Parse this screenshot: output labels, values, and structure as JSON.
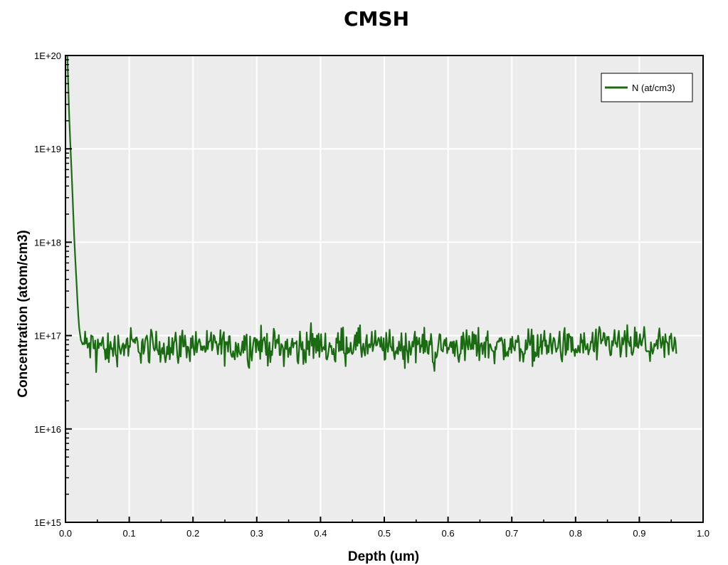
{
  "chart_data": {
    "type": "line",
    "title": "CMSH",
    "xlabel": "Depth (um)",
    "ylabel": "Concentration (atom/cm3)",
    "xlim": [
      0.0,
      1.0
    ],
    "ylim": [
      1000000000000000.0,
      1e+20
    ],
    "y_scale": "log",
    "grid": true,
    "legend_position": "top-right",
    "x_ticks": [
      "0.0",
      "0.1",
      "0.2",
      "0.3",
      "0.4",
      "0.5",
      "0.6",
      "0.7",
      "0.8",
      "0.9",
      "1.0"
    ],
    "y_ticks": [
      "1E+15",
      "1E+16",
      "1E+17",
      "1E+18",
      "1E+19",
      "1E+20"
    ],
    "series": [
      {
        "name": "N (at/cm3)",
        "color": "#1a6b12",
        "x": [
          0.003,
          0.006,
          0.01,
          0.014,
          0.018,
          0.021,
          0.024,
          0.027,
          0.03,
          0.035,
          0.04,
          0.05,
          0.06,
          0.08,
          0.1,
          0.15,
          0.2,
          0.25,
          0.3,
          0.35,
          0.4,
          0.43,
          0.45,
          0.5,
          0.55,
          0.6,
          0.65,
          0.7,
          0.75,
          0.8,
          0.85,
          0.9,
          0.95,
          0.958
        ],
        "y": [
          1e+20,
          2e+19,
          5e+18,
          1e+18,
          3e+17,
          1.3e+17,
          9e+16,
          8e+16,
          8e+16,
          8e+16,
          7.5e+16,
          8e+16,
          7.5e+16,
          7.5e+16,
          8e+16,
          7.5e+16,
          8e+16,
          7.5e+16,
          8e+16,
          7.5e+16,
          8e+16,
          8e+16,
          8e+16,
          7.5e+16,
          8e+16,
          7.5e+16,
          8e+16,
          7.5e+16,
          8e+16,
          7.5e+16,
          8e+16,
          8e+16,
          7.5e+16,
          8e+16
        ]
      }
    ],
    "annotations": []
  }
}
